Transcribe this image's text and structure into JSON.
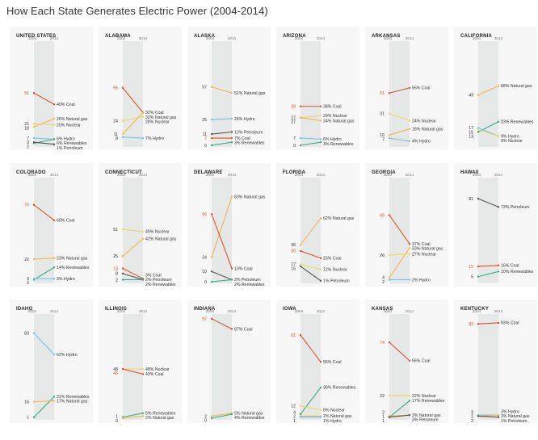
{
  "page": {
    "title": "How Each State Generates Electric Power (2004-2014)"
  },
  "colors": {
    "Coal": "#d9542b",
    "Natural gas": "#f2b650",
    "Nuclear": "#ecd86a",
    "Hydro": "#79c1e6",
    "Renewables": "#3aa889",
    "Petroleum": "#555555"
  },
  "chart_data": [
    {
      "type": "line",
      "title": "UNITED STATES",
      "x": [
        "2004",
        "2014"
      ],
      "ylim": [
        0,
        100
      ],
      "series": [
        {
          "name": "Coal",
          "values": [
            51,
            40
          ]
        },
        {
          "name": "Natural gas",
          "values": [
            18,
            26
          ]
        },
        {
          "name": "Nuclear",
          "values": [
            21,
            20
          ]
        },
        {
          "name": "Hydro",
          "values": [
            7,
            6
          ]
        },
        {
          "name": "Renewables",
          "values": [
            2,
            6
          ]
        },
        {
          "name": "Petroleum",
          "values": [
            3,
            1
          ]
        }
      ]
    },
    {
      "type": "line",
      "title": "ALABAMA",
      "x": [
        "2004",
        "2014"
      ],
      "ylim": [
        0,
        100
      ],
      "series": [
        {
          "name": "Coal",
          "values": [
            56,
            32
          ]
        },
        {
          "name": "Natural gas",
          "values": [
            11,
            32
          ]
        },
        {
          "name": "Nuclear",
          "values": [
            24,
            28
          ]
        },
        {
          "name": "Hydro",
          "values": [
            8,
            7
          ]
        }
      ]
    },
    {
      "type": "line",
      "title": "ALASKA",
      "x": [
        "2004",
        "2014"
      ],
      "ylim": [
        0,
        100
      ],
      "series": [
        {
          "name": "Natural gas",
          "values": [
            57,
            51
          ]
        },
        {
          "name": "Hydro",
          "values": [
            25,
            26
          ]
        },
        {
          "name": "Petroleum",
          "values": [
            11,
            13
          ]
        },
        {
          "name": "Coal",
          "values": [
            7,
            7
          ]
        },
        {
          "name": "Renewables",
          "values": [
            0,
            3
          ]
        }
      ]
    },
    {
      "type": "line",
      "title": "ARIZONA",
      "x": [
        "2004",
        "2014"
      ],
      "ylim": [
        0,
        100
      ],
      "series": [
        {
          "name": "Coal",
          "values": [
            38,
            38
          ]
        },
        {
          "name": "Nuclear",
          "values": [
            27,
            29
          ]
        },
        {
          "name": "Natural gas",
          "values": [
            27,
            24
          ]
        },
        {
          "name": "Hydro",
          "values": [
            7,
            6
          ]
        },
        {
          "name": "Renewables",
          "values": [
            0,
            3
          ]
        }
      ]
    },
    {
      "type": "line",
      "title": "ARKANSAS",
      "x": [
        "2004",
        "2014"
      ],
      "ylim": [
        0,
        100
      ],
      "series": [
        {
          "name": "Coal",
          "values": [
            51,
            56
          ]
        },
        {
          "name": "Nuclear",
          "values": [
            31,
            24
          ]
        },
        {
          "name": "Natural gas",
          "values": [
            10,
            16
          ]
        },
        {
          "name": "Hydro",
          "values": [
            7,
            4
          ]
        }
      ]
    },
    {
      "type": "line",
      "title": "CALIFORNIA",
      "x": [
        "2004",
        "2014"
      ],
      "ylim": [
        0,
        100
      ],
      "series": [
        {
          "name": "Natural gas",
          "values": [
            49,
            58
          ]
        },
        {
          "name": "Renewables",
          "values": [
            13,
            23
          ]
        },
        {
          "name": "Hydro",
          "values": [
            17,
            9
          ]
        },
        {
          "name": "Nuclear",
          "values": [
            15,
            9
          ]
        }
      ]
    },
    {
      "type": "line",
      "title": "COLORADO",
      "x": [
        "2004",
        "2014"
      ],
      "ylim": [
        0,
        100
      ],
      "series": [
        {
          "name": "Coal",
          "values": [
            75,
            60
          ]
        },
        {
          "name": "Natural gas",
          "values": [
            22,
            23
          ]
        },
        {
          "name": "Renewables",
          "values": [
            2,
            14
          ]
        },
        {
          "name": "Hydro",
          "values": [
            3,
            3
          ]
        }
      ]
    },
    {
      "type": "line",
      "title": "CONNECTICUT",
      "x": [
        "2004",
        "2014"
      ],
      "ylim": [
        0,
        100
      ],
      "series": [
        {
          "name": "Nuclear",
          "values": [
            51,
            49
          ]
        },
        {
          "name": "Natural gas",
          "values": [
            25,
            42
          ]
        },
        {
          "name": "Coal",
          "values": [
            13,
            3
          ]
        },
        {
          "name": "Petroleum",
          "values": [
            8,
            2
          ]
        },
        {
          "name": "Renewables",
          "values": [
            2,
            2
          ]
        }
      ]
    },
    {
      "type": "line",
      "title": "DELAWARE",
      "x": [
        "2004",
        "2014"
      ],
      "ylim": [
        0,
        100
      ],
      "series": [
        {
          "name": "Natural gas",
          "values": [
            24,
            83
          ]
        },
        {
          "name": "Coal",
          "values": [
            66,
            13
          ]
        },
        {
          "name": "Petroleum",
          "values": [
            10,
            2
          ]
        },
        {
          "name": "Renewables",
          "values": [
            0,
            2
          ]
        }
      ]
    },
    {
      "type": "line",
      "title": "FLORIDA",
      "x": [
        "2004",
        "2014"
      ],
      "ylim": [
        0,
        100
      ],
      "series": [
        {
          "name": "Natural gas",
          "values": [
            36,
            62
          ]
        },
        {
          "name": "Coal",
          "values": [
            30,
            23
          ]
        },
        {
          "name": "Nuclear",
          "values": [
            17,
            12
          ]
        },
        {
          "name": "Petroleum",
          "values": [
            15,
            1
          ]
        }
      ]
    },
    {
      "type": "line",
      "title": "GEORGIA",
      "x": [
        "2004",
        "2014"
      ],
      "ylim": [
        0,
        100
      ],
      "series": [
        {
          "name": "Coal",
          "values": [
            65,
            37
          ]
        },
        {
          "name": "Natural gas",
          "values": [
            4,
            33
          ]
        },
        {
          "name": "Nuclear",
          "values": [
            26,
            27
          ]
        },
        {
          "name": "Hydro",
          "values": [
            2,
            2
          ]
        }
      ]
    },
    {
      "type": "line",
      "title": "HAWAII",
      "x": [
        "2004",
        "2014"
      ],
      "ylim": [
        0,
        100
      ],
      "series": [
        {
          "name": "Petroleum",
          "values": [
            81,
            73
          ]
        },
        {
          "name": "Coal",
          "values": [
            15,
            16
          ]
        },
        {
          "name": "Renewables",
          "values": [
            5,
            10
          ]
        }
      ]
    },
    {
      "type": "line",
      "title": "IDAHO",
      "x": [
        "2004",
        "2014"
      ],
      "ylim": [
        0,
        100
      ],
      "series": [
        {
          "name": "Hydro",
          "values": [
            83,
            62
          ]
        },
        {
          "name": "Renewables",
          "values": [
            1,
            21
          ]
        },
        {
          "name": "Natural gas",
          "values": [
            16,
            17
          ]
        }
      ]
    },
    {
      "type": "line",
      "title": "ILLINOIS",
      "x": [
        "2004",
        "2014"
      ],
      "ylim": [
        0,
        100
      ],
      "series": [
        {
          "name": "Nuclear",
          "values": [
            48,
            48
          ]
        },
        {
          "name": "Coal",
          "values": [
            48,
            43
          ]
        },
        {
          "name": "Renewables",
          "values": [
            1,
            5
          ]
        },
        {
          "name": "Natural gas",
          "values": [
            0,
            2
          ]
        }
      ]
    },
    {
      "type": "line",
      "title": "INDIANA",
      "x": [
        "2004",
        "2014"
      ],
      "ylim": [
        0,
        100
      ],
      "series": [
        {
          "name": "Coal",
          "values": [
            97,
            87
          ]
        },
        {
          "name": "Natural gas",
          "values": [
            2,
            5
          ]
        },
        {
          "name": "Renewables",
          "values": [
            0,
            4
          ]
        }
      ]
    },
    {
      "type": "line",
      "title": "IOWA",
      "x": [
        "2004",
        "2014"
      ],
      "ylim": [
        0,
        100
      ],
      "series": [
        {
          "name": "Coal",
          "values": [
            81,
            55
          ]
        },
        {
          "name": "Renewables",
          "values": [
            4,
            30
          ]
        },
        {
          "name": "Nuclear",
          "values": [
            12,
            8
          ]
        },
        {
          "name": "Natural gas",
          "values": [
            2,
            2
          ]
        },
        {
          "name": "Hydro",
          "values": [
            1,
            1
          ]
        }
      ]
    },
    {
      "type": "line",
      "title": "KANSAS",
      "x": [
        "2004",
        "2014"
      ],
      "ylim": [
        0,
        100
      ],
      "series": [
        {
          "name": "Coal",
          "values": [
            74,
            56
          ]
        },
        {
          "name": "Nuclear",
          "values": [
            22,
            22
          ]
        },
        {
          "name": "Renewables",
          "values": [
            1,
            17
          ]
        },
        {
          "name": "Natural gas",
          "values": [
            2,
            3
          ]
        },
        {
          "name": "Petroleum",
          "values": [
            1,
            3
          ]
        }
      ]
    },
    {
      "type": "line",
      "title": "KENTUCKY",
      "x": [
        "2004",
        "2014"
      ],
      "ylim": [
        0,
        100
      ],
      "series": [
        {
          "name": "Coal",
          "values": [
            92,
            93
          ]
        },
        {
          "name": "Hydro",
          "values": [
            3,
            3
          ]
        },
        {
          "name": "Natural gas",
          "values": [
            2,
            3
          ]
        },
        {
          "name": "Petroleum",
          "values": [
            2,
            1
          ]
        }
      ]
    }
  ]
}
